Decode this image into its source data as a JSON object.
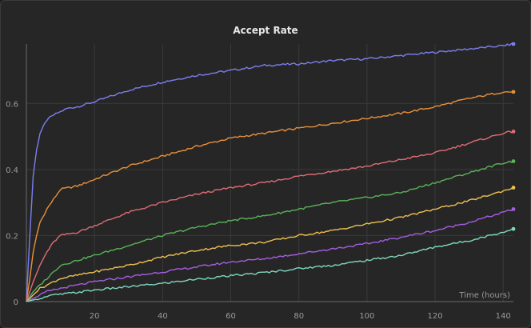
{
  "chart_data": {
    "type": "line",
    "title": "Accept Rate",
    "xlabel": "Time (hours)",
    "ylabel": "",
    "xlim": [
      0,
      143
    ],
    "ylim": [
      0,
      0.78
    ],
    "xticks": [
      20,
      40,
      60,
      80,
      100,
      120,
      140
    ],
    "yticks": [
      0,
      0.2,
      0.4,
      0.6
    ],
    "ytick_labels": [
      "0",
      "0.2",
      "0.4",
      "0.6"
    ],
    "grid": true,
    "series": [
      {
        "color": "#7b7ff0",
        "x": [
          0,
          1,
          2,
          3,
          4,
          5,
          6,
          8,
          10,
          12,
          15,
          20,
          30,
          40,
          50,
          60,
          70,
          80,
          90,
          100,
          110,
          120,
          130,
          140,
          143
        ],
        "y": [
          0,
          0.2,
          0.38,
          0.46,
          0.51,
          0.53,
          0.55,
          0.565,
          0.575,
          0.585,
          0.59,
          0.605,
          0.64,
          0.665,
          0.685,
          0.7,
          0.715,
          0.72,
          0.73,
          0.735,
          0.745,
          0.755,
          0.765,
          0.775,
          0.78
        ]
      },
      {
        "color": "#e8913a",
        "x": [
          0,
          1,
          2,
          3,
          4,
          6,
          8,
          10,
          15,
          20,
          30,
          40,
          50,
          60,
          70,
          80,
          90,
          100,
          110,
          120,
          130,
          140,
          143
        ],
        "y": [
          0,
          0.07,
          0.15,
          0.2,
          0.24,
          0.28,
          0.31,
          0.34,
          0.35,
          0.37,
          0.41,
          0.44,
          0.47,
          0.495,
          0.51,
          0.525,
          0.54,
          0.555,
          0.57,
          0.59,
          0.615,
          0.635,
          0.635
        ]
      },
      {
        "color": "#e06c75",
        "x": [
          0,
          2,
          4,
          6,
          8,
          10,
          15,
          20,
          30,
          40,
          50,
          60,
          70,
          80,
          90,
          100,
          110,
          120,
          130,
          140,
          143
        ],
        "y": [
          0,
          0.06,
          0.11,
          0.15,
          0.18,
          0.2,
          0.21,
          0.23,
          0.27,
          0.3,
          0.325,
          0.345,
          0.36,
          0.38,
          0.395,
          0.41,
          0.43,
          0.45,
          0.48,
          0.51,
          0.515
        ]
      },
      {
        "color": "#5bb35a",
        "x": [
          0,
          2,
          4,
          6,
          8,
          10,
          15,
          20,
          30,
          40,
          50,
          60,
          70,
          80,
          90,
          100,
          110,
          120,
          130,
          140,
          143
        ],
        "y": [
          0,
          0.03,
          0.05,
          0.07,
          0.09,
          0.11,
          0.125,
          0.14,
          0.17,
          0.2,
          0.225,
          0.245,
          0.26,
          0.28,
          0.3,
          0.315,
          0.33,
          0.36,
          0.39,
          0.42,
          0.425
        ]
      },
      {
        "color": "#f0c050",
        "x": [
          0,
          2,
          4,
          6,
          8,
          10,
          15,
          20,
          30,
          40,
          50,
          60,
          70,
          80,
          90,
          100,
          110,
          120,
          130,
          140,
          143
        ],
        "y": [
          0,
          0.02,
          0.04,
          0.05,
          0.06,
          0.07,
          0.08,
          0.09,
          0.11,
          0.135,
          0.155,
          0.17,
          0.18,
          0.2,
          0.215,
          0.235,
          0.255,
          0.28,
          0.305,
          0.335,
          0.345
        ]
      },
      {
        "color": "#a65de0",
        "x": [
          0,
          2,
          4,
          6,
          8,
          10,
          15,
          20,
          30,
          40,
          50,
          60,
          70,
          80,
          90,
          100,
          110,
          120,
          130,
          140,
          143
        ],
        "y": [
          0,
          0.01,
          0.02,
          0.03,
          0.035,
          0.04,
          0.05,
          0.06,
          0.075,
          0.09,
          0.105,
          0.12,
          0.13,
          0.145,
          0.16,
          0.175,
          0.195,
          0.215,
          0.24,
          0.27,
          0.28
        ]
      },
      {
        "color": "#7fd8c0",
        "x": [
          0,
          2,
          4,
          6,
          8,
          10,
          15,
          20,
          30,
          40,
          50,
          60,
          70,
          80,
          90,
          100,
          110,
          120,
          130,
          140,
          143
        ],
        "y": [
          0,
          0.005,
          0.01,
          0.015,
          0.02,
          0.022,
          0.028,
          0.035,
          0.045,
          0.055,
          0.068,
          0.078,
          0.088,
          0.1,
          0.11,
          0.125,
          0.14,
          0.165,
          0.185,
          0.21,
          0.22
        ]
      }
    ]
  }
}
